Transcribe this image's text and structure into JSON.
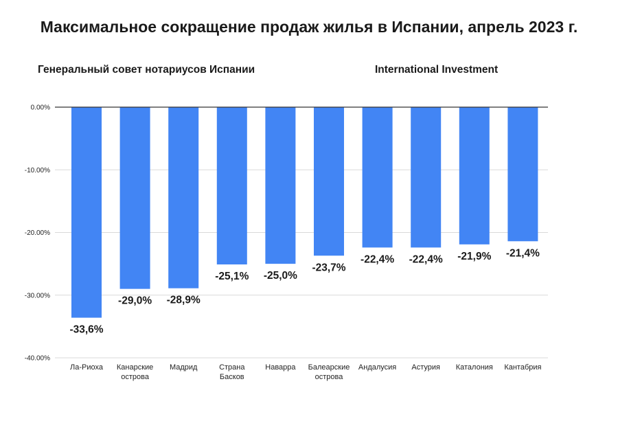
{
  "title": "Максимальное сокращение продаж жилья в Испании, апрель 2023 г.",
  "sources": {
    "left": "Генеральный совет нотариусов Испании",
    "right": "International Investment"
  },
  "chart_data": {
    "type": "bar",
    "title": "Максимальное сокращение продаж жилья в Испании, апрель 2023 г.",
    "categories": [
      [
        "Ла-Риоха"
      ],
      [
        "Канарские",
        "острова"
      ],
      [
        "Мадрид"
      ],
      [
        "Страна",
        "Басков"
      ],
      [
        "Наварра"
      ],
      [
        "Балеарские",
        "острова"
      ],
      [
        "Андалусия"
      ],
      [
        "Астурия"
      ],
      [
        "Каталония"
      ],
      [
        "Кантабрия"
      ]
    ],
    "values": [
      -33.6,
      -29.0,
      -28.9,
      -25.1,
      -25.0,
      -23.7,
      -22.4,
      -22.4,
      -21.9,
      -21.4
    ],
    "data_labels": [
      "-33,6%",
      "-29,0%",
      "-28,9%",
      "-25,1%",
      "-25,0%",
      "-23,7%",
      "-22,4%",
      "-22,4%",
      "-21,9%",
      "-21,4%"
    ],
    "yticks": [
      0,
      -10,
      -20,
      -30,
      -40
    ],
    "ytick_labels": [
      "0.00%",
      "-10.00%",
      "-20.00%",
      "-30.00%",
      "-40.00%"
    ],
    "ylim": [
      -40,
      0
    ],
    "grid": true,
    "colors": {
      "bar": "#4285f4",
      "grid": "#d9d9d9",
      "axis": "#333333"
    }
  }
}
